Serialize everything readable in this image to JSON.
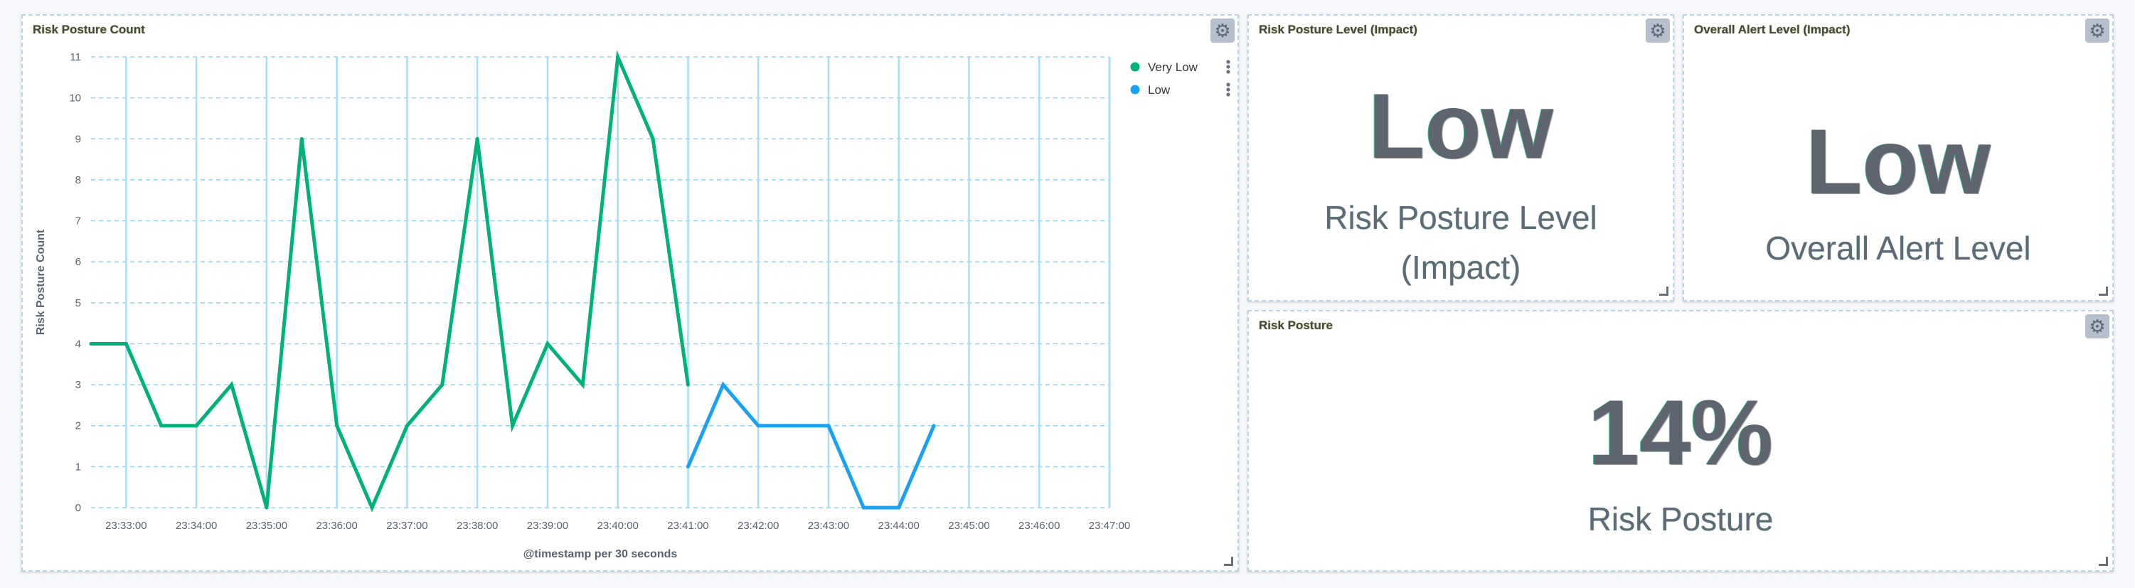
{
  "panels": {
    "risk_posture_count": {
      "title": "Risk Posture Count"
    },
    "risk_posture_level": {
      "title": "Risk Posture Level (Impact)",
      "value": "Low",
      "label_line1": "Risk Posture Level",
      "label_line2": "(Impact)"
    },
    "overall_alert_level": {
      "title": "Overall Alert Level (Impact)",
      "value": "Low",
      "label": "Overall Alert Level"
    },
    "risk_posture": {
      "title": "Risk Posture",
      "value": "14%",
      "label": "Risk Posture"
    }
  },
  "icons": {
    "gear": "gear-icon",
    "resize": "resize-handle-icon",
    "legend_menu": "vertical-ellipsis-icon"
  },
  "chart_data": {
    "type": "line",
    "title": "Risk Posture Count",
    "xlabel": "@timestamp per 30 seconds",
    "ylabel": "Risk Posture Count",
    "ylim": [
      0,
      11
    ],
    "yticks": [
      0,
      1,
      2,
      3,
      4,
      5,
      6,
      7,
      8,
      9,
      10,
      11
    ],
    "xlim": [
      "23:32:30",
      "23:47:00"
    ],
    "xticks": [
      "23:33:00",
      "23:34:00",
      "23:35:00",
      "23:36:00",
      "23:37:00",
      "23:38:00",
      "23:39:00",
      "23:40:00",
      "23:41:00",
      "23:42:00",
      "23:43:00",
      "23:44:00",
      "23:45:00",
      "23:46:00",
      "23:47:00"
    ],
    "grid": true,
    "legend_position": "top-right",
    "series": [
      {
        "name": "Very Low",
        "color": "#00b27a",
        "x": [
          "23:32:30",
          "23:33:00",
          "23:33:30",
          "23:34:00",
          "23:34:30",
          "23:35:00",
          "23:35:30",
          "23:36:00",
          "23:36:30",
          "23:37:00",
          "23:37:30",
          "23:38:00",
          "23:38:30",
          "23:39:00",
          "23:39:30",
          "23:40:00",
          "23:40:30",
          "23:41:00"
        ],
        "values": [
          4,
          4,
          2,
          2,
          3,
          0,
          9,
          2,
          0,
          2,
          3,
          9,
          2,
          4,
          3,
          11,
          9,
          3
        ]
      },
      {
        "name": "Low",
        "color": "#1ba1f2",
        "x": [
          "23:41:00",
          "23:41:30",
          "23:42:00",
          "23:42:30",
          "23:43:00",
          "23:43:30",
          "23:44:00",
          "23:44:30"
        ],
        "values": [
          1,
          3,
          2,
          2,
          2,
          0,
          0,
          2
        ]
      }
    ]
  }
}
